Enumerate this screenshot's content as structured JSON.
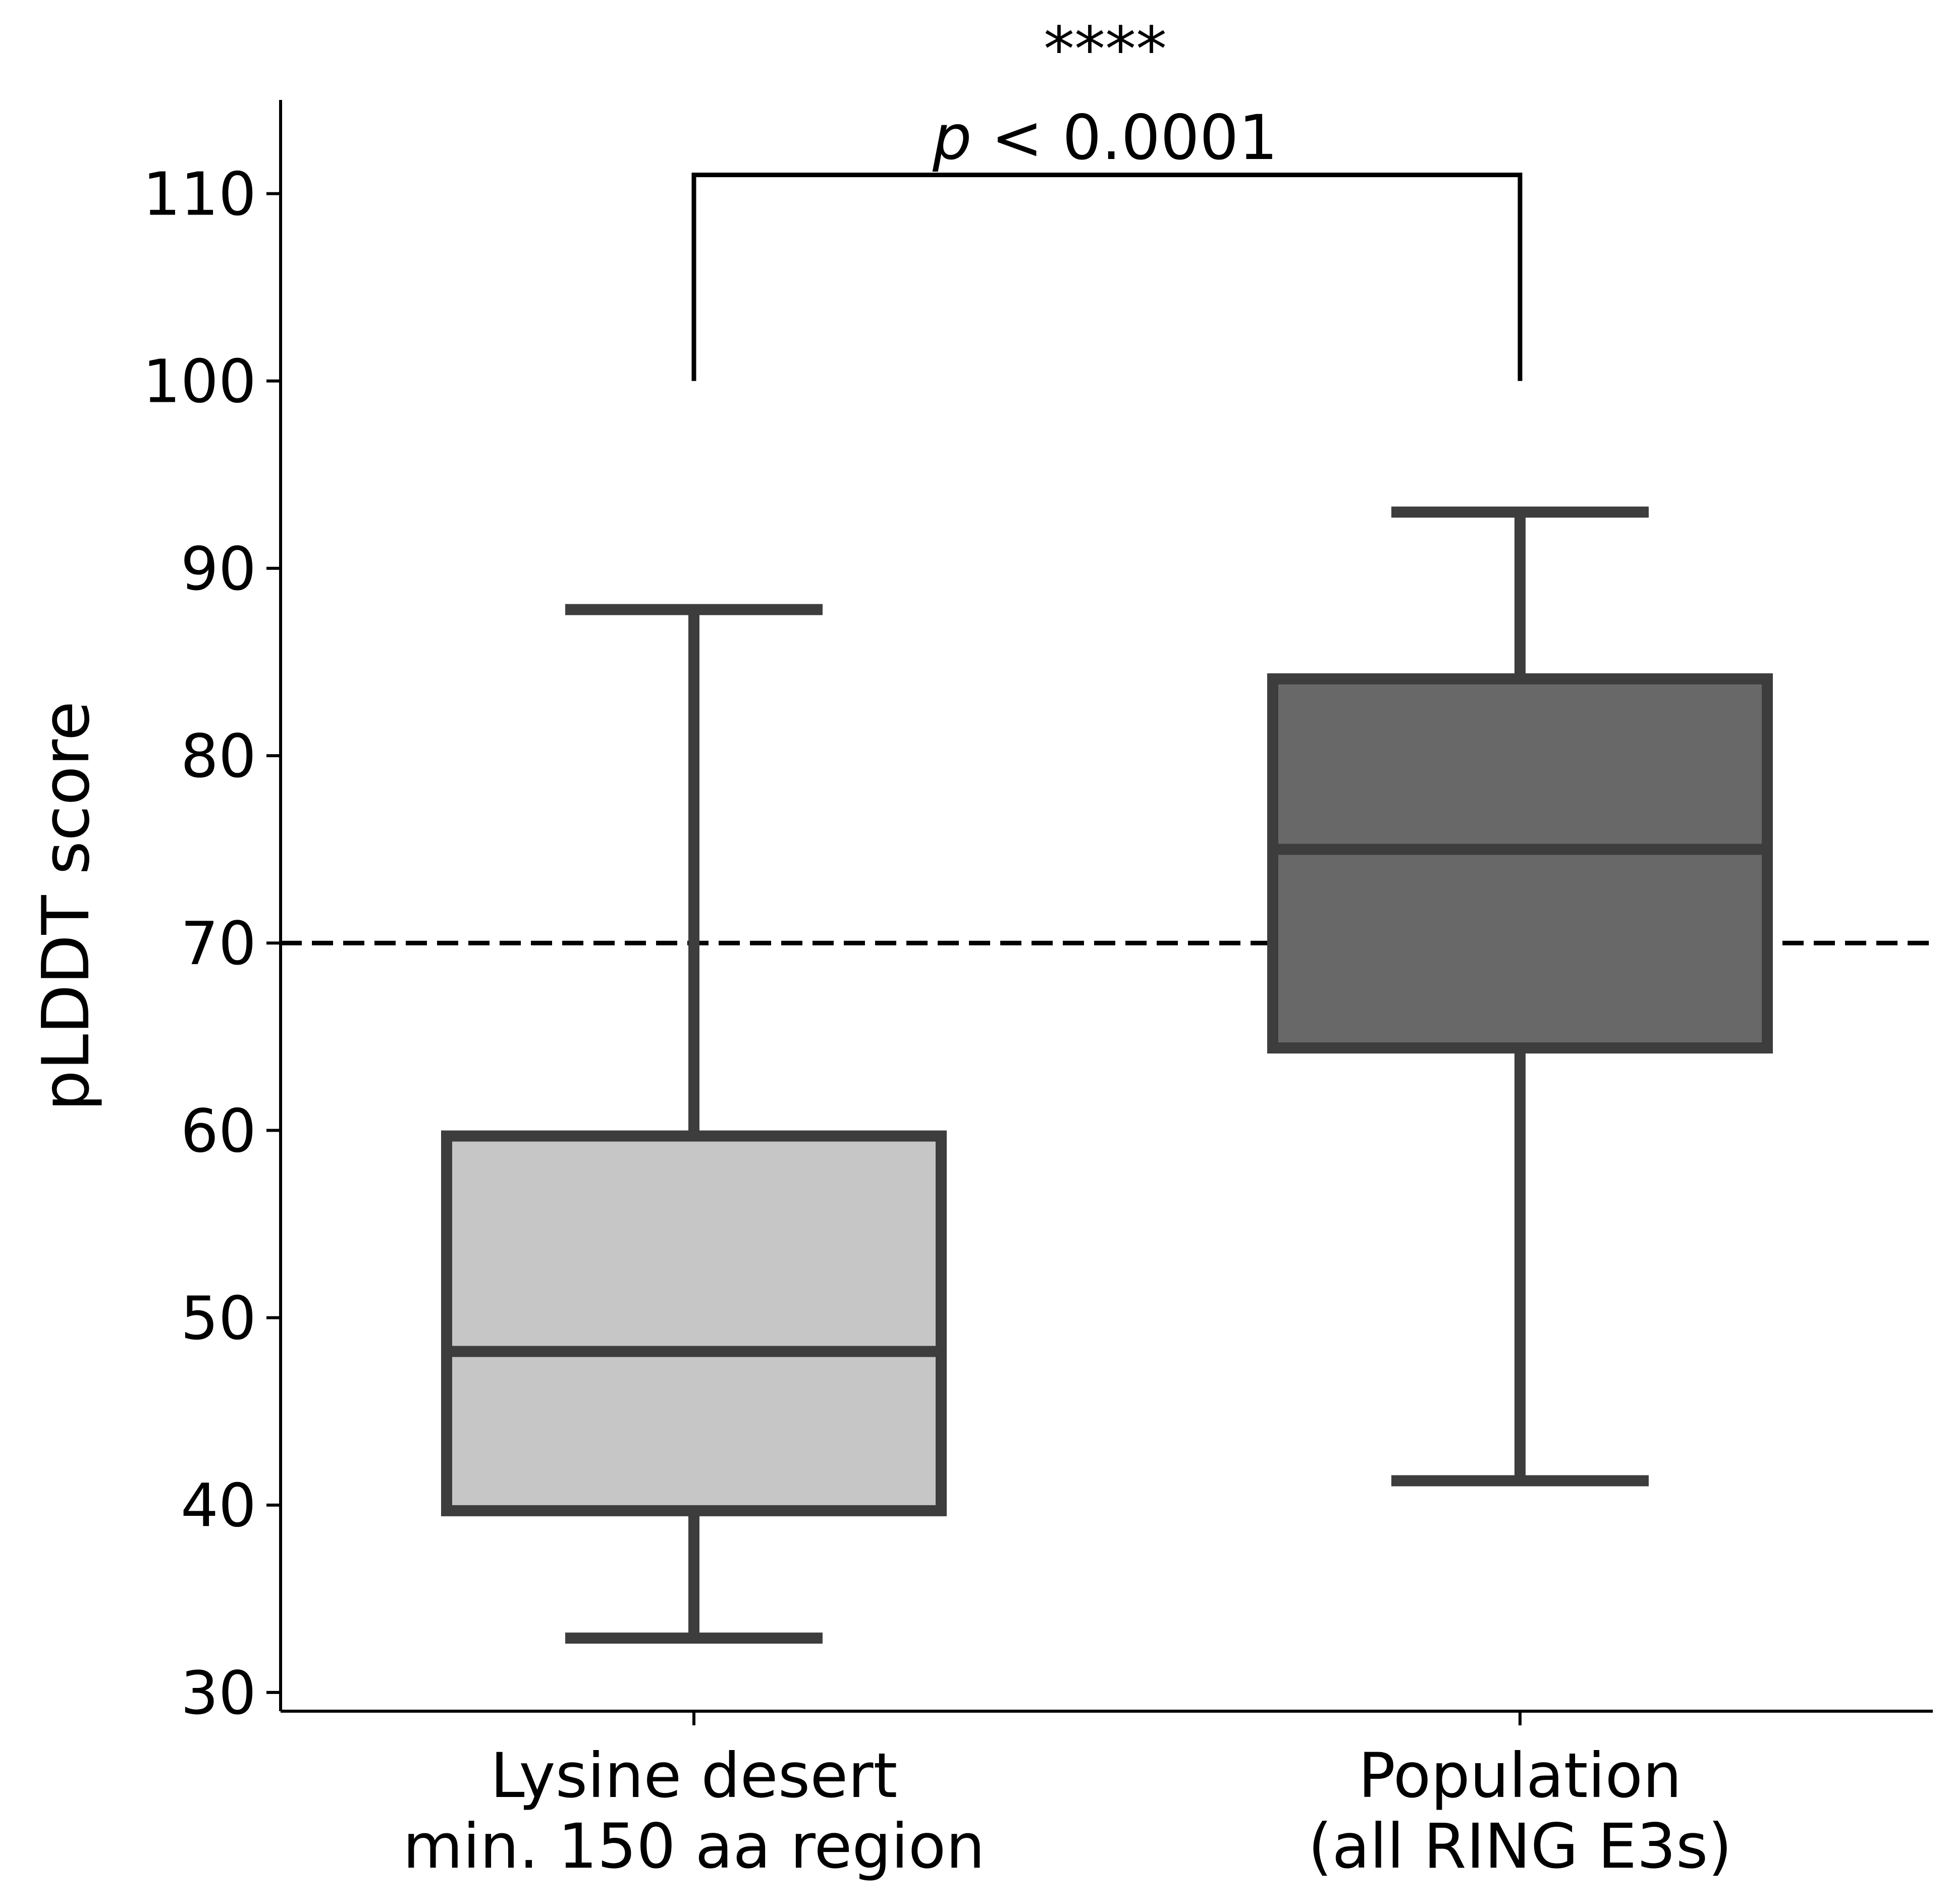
{
  "chart_data": {
    "type": "box",
    "ylabel": "pLDDT score",
    "xlabel": "",
    "ylim": [
      29,
      115
    ],
    "yticks": [
      30,
      40,
      50,
      60,
      70,
      80,
      90,
      100,
      110
    ],
    "ytick_labels": [
      "30",
      "40",
      "50",
      "60",
      "70",
      "80",
      "90",
      "100",
      "110"
    ],
    "categories": [
      {
        "line1": "Lysine desert",
        "line2": "min. 150 aa region"
      },
      {
        "line1": "Population",
        "line2": "(all RING E3s)"
      }
    ],
    "boxes": [
      {
        "whisker_low": 32.9,
        "q1": 39.7,
        "median": 48.2,
        "q3": 59.7,
        "whisker_high": 87.8,
        "fill": "#c6c6c6"
      },
      {
        "whisker_low": 41.3,
        "q1": 64.4,
        "median": 75.0,
        "q3": 84.1,
        "whisker_high": 93.0,
        "fill": "#686868"
      }
    ],
    "reference_line": {
      "y": 70,
      "style": "dashed",
      "color": "#000000"
    },
    "significance": {
      "stars": "****",
      "p_prefix": "p",
      "p_rest": " < 0.0001",
      "bracket_bottom": 100,
      "bracket_top": 111
    },
    "colors": {
      "box_edge": "#3d3d3d",
      "axis": "#000000"
    },
    "grid": false,
    "legend": "none"
  }
}
